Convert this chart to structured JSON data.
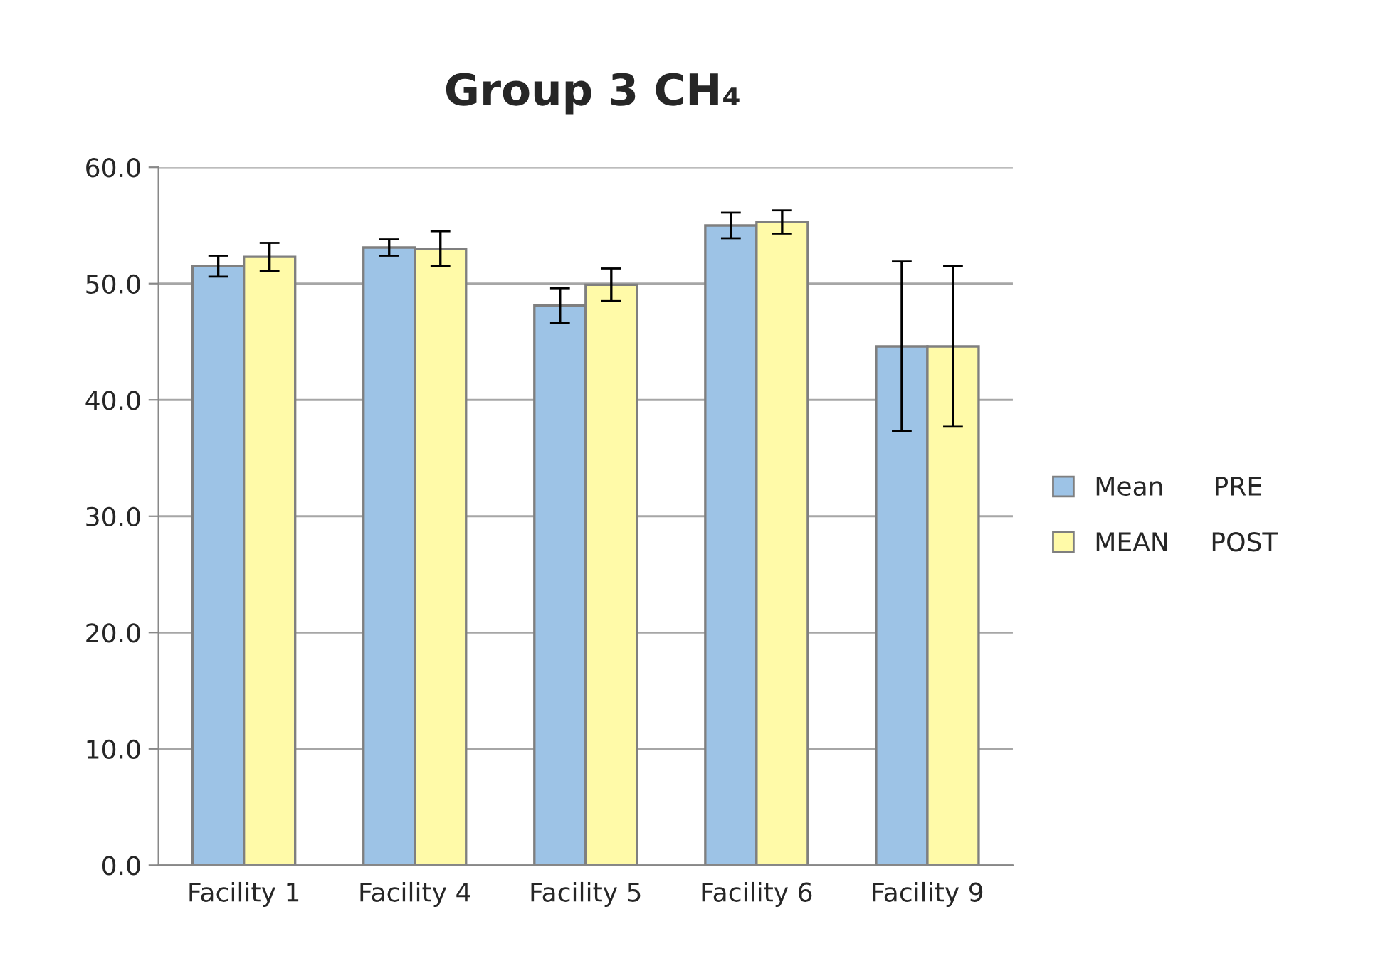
{
  "chart_data": {
    "type": "bar",
    "title": "Group 3 CH₄",
    "categories": [
      "Facility 1",
      "Facility 4",
      "Facility 5",
      "Facility 6",
      "Facility 9"
    ],
    "series": [
      {
        "name": "Mean      PRE",
        "color": "#9dc3e6",
        "values": [
          51.5,
          53.1,
          48.1,
          55.0,
          44.6
        ],
        "errors": [
          0.9,
          0.7,
          1.5,
          1.1,
          7.3
        ]
      },
      {
        "name": "MEAN     POST",
        "color": "#fffaa8",
        "values": [
          52.3,
          53.0,
          49.9,
          55.3,
          44.6
        ],
        "errors": [
          1.2,
          1.5,
          1.4,
          1.0,
          6.9
        ]
      }
    ],
    "ylim": [
      0,
      60
    ],
    "yticks": [
      {
        "value": 0,
        "label": "0.0"
      },
      {
        "value": 10,
        "label": "10.0"
      },
      {
        "value": 20,
        "label": "20.0"
      },
      {
        "value": 30,
        "label": "30.0"
      },
      {
        "value": 40,
        "label": "40.0"
      },
      {
        "value": 50,
        "label": "50.0"
      },
      {
        "value": 60,
        "label": "60.0"
      }
    ],
    "grid": "y",
    "legend": "right"
  }
}
